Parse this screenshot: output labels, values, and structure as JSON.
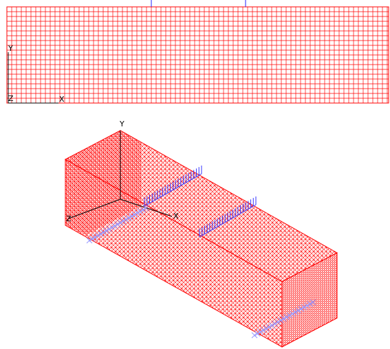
{
  "top_view": {
    "axis_y": "Y",
    "axis_z": "Z",
    "axis_x": "X"
  },
  "iso_view": {
    "axis_y": "Y",
    "axis_z": "Z",
    "axis_x": "X"
  }
}
